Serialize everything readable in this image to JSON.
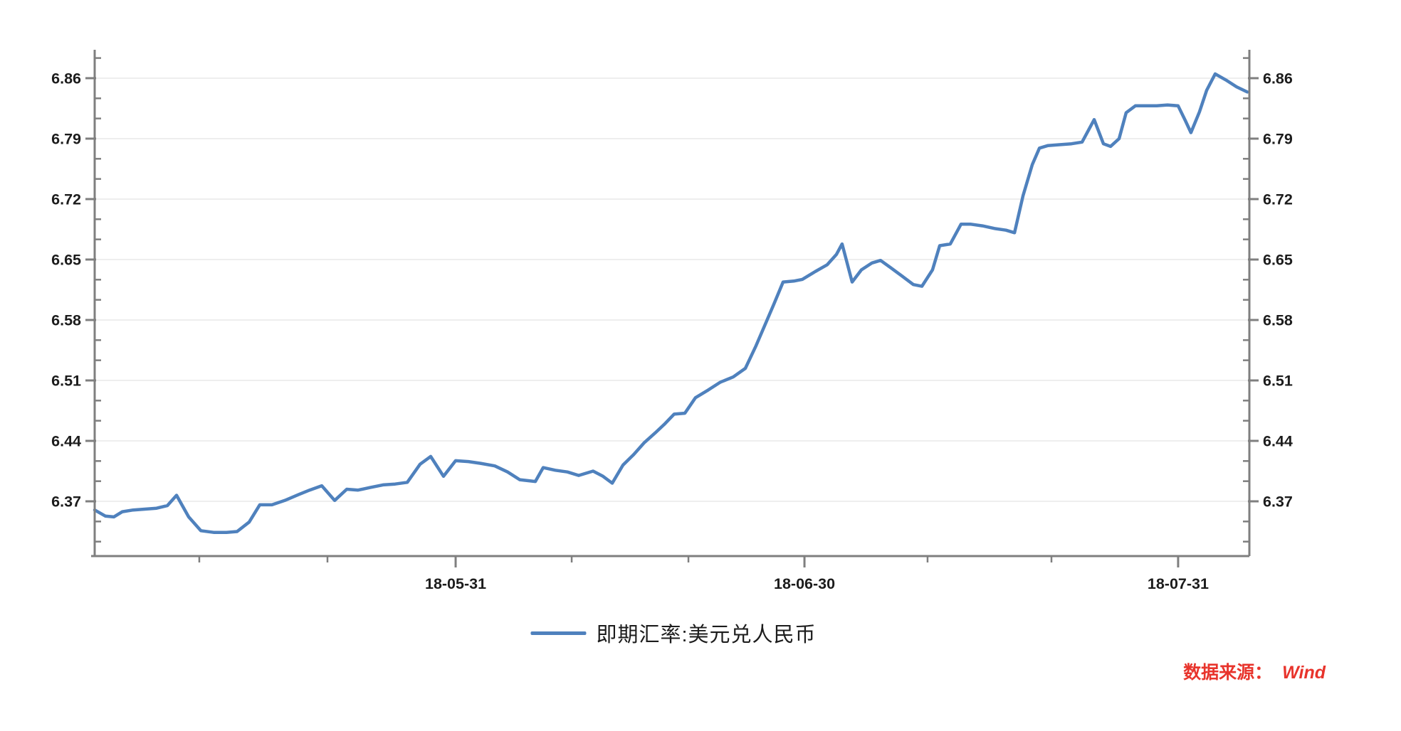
{
  "chart_data": {
    "type": "line",
    "title": "",
    "grid": "horizontal-major",
    "legend_position": "bottom-center",
    "series": [
      {
        "name": "即期汇率:美元兑人民币",
        "color": "#4f81bd",
        "points": [
          [
            0.0,
            6.36
          ],
          [
            0.0092,
            6.353
          ],
          [
            0.0166,
            6.352
          ],
          [
            0.024,
            6.358
          ],
          [
            0.0333,
            6.36
          ],
          [
            0.0444,
            6.361
          ],
          [
            0.0536,
            6.362
          ],
          [
            0.0629,
            6.365
          ],
          [
            0.0709,
            6.377
          ],
          [
            0.0814,
            6.352
          ],
          [
            0.0919,
            6.336
          ],
          [
            0.103,
            6.334
          ],
          [
            0.1141,
            6.334
          ],
          [
            0.1233,
            6.335
          ],
          [
            0.1338,
            6.346
          ],
          [
            0.143,
            6.366
          ],
          [
            0.1535,
            6.366
          ],
          [
            0.1646,
            6.371
          ],
          [
            0.1769,
            6.378
          ],
          [
            0.1862,
            6.383
          ],
          [
            0.1967,
            6.388
          ],
          [
            0.2078,
            6.371
          ],
          [
            0.2183,
            6.384
          ],
          [
            0.2281,
            6.383
          ],
          [
            0.2386,
            6.386
          ],
          [
            0.2497,
            6.389
          ],
          [
            0.2602,
            6.39
          ],
          [
            0.2707,
            6.392
          ],
          [
            0.2818,
            6.413
          ],
          [
            0.291,
            6.422
          ],
          [
            0.3021,
            6.399
          ],
          [
            0.3126,
            6.417
          ],
          [
            0.3237,
            6.416
          ],
          [
            0.3342,
            6.414
          ],
          [
            0.3465,
            6.411
          ],
          [
            0.3576,
            6.404
          ],
          [
            0.3681,
            6.395
          ],
          [
            0.3816,
            6.393
          ],
          [
            0.3884,
            6.409
          ],
          [
            0.3989,
            6.406
          ],
          [
            0.4094,
            6.404
          ],
          [
            0.4192,
            6.4
          ],
          [
            0.4316,
            6.405
          ],
          [
            0.4402,
            6.399
          ],
          [
            0.4482,
            6.391
          ],
          [
            0.4575,
            6.412
          ],
          [
            0.4667,
            6.424
          ],
          [
            0.476,
            6.438
          ],
          [
            0.4852,
            6.449
          ],
          [
            0.4932,
            6.459
          ],
          [
            0.5018,
            6.471
          ],
          [
            0.5111,
            6.472
          ],
          [
            0.5203,
            6.49
          ],
          [
            0.5314,
            6.499
          ],
          [
            0.5419,
            6.508
          ],
          [
            0.553,
            6.514
          ],
          [
            0.5635,
            6.524
          ],
          [
            0.5727,
            6.55
          ],
          [
            0.5807,
            6.575
          ],
          [
            0.5881,
            6.598
          ],
          [
            0.5962,
            6.624
          ],
          [
            0.6054,
            6.625
          ],
          [
            0.6128,
            6.627
          ],
          [
            0.6239,
            6.636
          ],
          [
            0.6344,
            6.644
          ],
          [
            0.6424,
            6.656
          ],
          [
            0.6473,
            6.668
          ],
          [
            0.656,
            6.624
          ],
          [
            0.664,
            6.638
          ],
          [
            0.6732,
            6.646
          ],
          [
            0.6806,
            6.649
          ],
          [
            0.6899,
            6.64
          ],
          [
            0.6991,
            6.631
          ],
          [
            0.709,
            6.621
          ],
          [
            0.7164,
            6.619
          ],
          [
            0.7256,
            6.638
          ],
          [
            0.7318,
            6.666
          ],
          [
            0.741,
            6.668
          ],
          [
            0.7503,
            6.691
          ],
          [
            0.7583,
            6.691
          ],
          [
            0.7688,
            6.689
          ],
          [
            0.7793,
            6.686
          ],
          [
            0.7892,
            6.684
          ],
          [
            0.7966,
            6.681
          ],
          [
            0.804,
            6.724
          ],
          [
            0.812,
            6.76
          ],
          [
            0.8182,
            6.779
          ],
          [
            0.8256,
            6.782
          ],
          [
            0.8354,
            6.783
          ],
          [
            0.8459,
            6.784
          ],
          [
            0.8551,
            6.786
          ],
          [
            0.8656,
            6.812
          ],
          [
            0.8736,
            6.784
          ],
          [
            0.8798,
            6.781
          ],
          [
            0.8872,
            6.79
          ],
          [
            0.8933,
            6.82
          ],
          [
            0.9013,
            6.828
          ],
          [
            0.9106,
            6.828
          ],
          [
            0.9198,
            6.828
          ],
          [
            0.9291,
            6.829
          ],
          [
            0.9383,
            6.828
          ],
          [
            0.9445,
            6.811
          ],
          [
            0.9494,
            6.797
          ],
          [
            0.9568,
            6.821
          ],
          [
            0.963,
            6.846
          ],
          [
            0.9704,
            6.865
          ],
          [
            0.9796,
            6.858
          ],
          [
            0.9889,
            6.85
          ],
          [
            0.9982,
            6.844
          ]
        ]
      }
    ],
    "x_axis": {
      "major_ticks": [
        {
          "pos": 0.3126,
          "label": "18-05-31"
        },
        {
          "pos": 0.6147,
          "label": "18-06-30"
        },
        {
          "pos": 0.9383,
          "label": "18-07-31"
        }
      ],
      "minor_tick_positions": [
        0.0906,
        0.2016,
        0.4131,
        0.5142,
        0.7213,
        0.8286
      ]
    },
    "y_axis": {
      "range": [
        6.3066,
        6.8929
      ],
      "major_ticks": [
        {
          "value": 6.37,
          "label": "6.37"
        },
        {
          "value": 6.44,
          "label": "6.44"
        },
        {
          "value": 6.51,
          "label": "6.51"
        },
        {
          "value": 6.58,
          "label": "6.58"
        },
        {
          "value": 6.65,
          "label": "6.65"
        },
        {
          "value": 6.72,
          "label": "6.72"
        },
        {
          "value": 6.79,
          "label": "6.79"
        },
        {
          "value": 6.86,
          "label": "6.86"
        }
      ],
      "minor_step": 0.0233333,
      "sides": "both"
    }
  },
  "legend": {
    "label": "即期汇率:美元兑人民币"
  },
  "source": {
    "prefix": "数据来源：",
    "name": "Wind"
  },
  "colors": {
    "line": "#4f81bd",
    "axis": "#7f7f7f",
    "grid": "#eeeeee",
    "label": "#1c1c1c",
    "source_red": "#e8342c"
  }
}
